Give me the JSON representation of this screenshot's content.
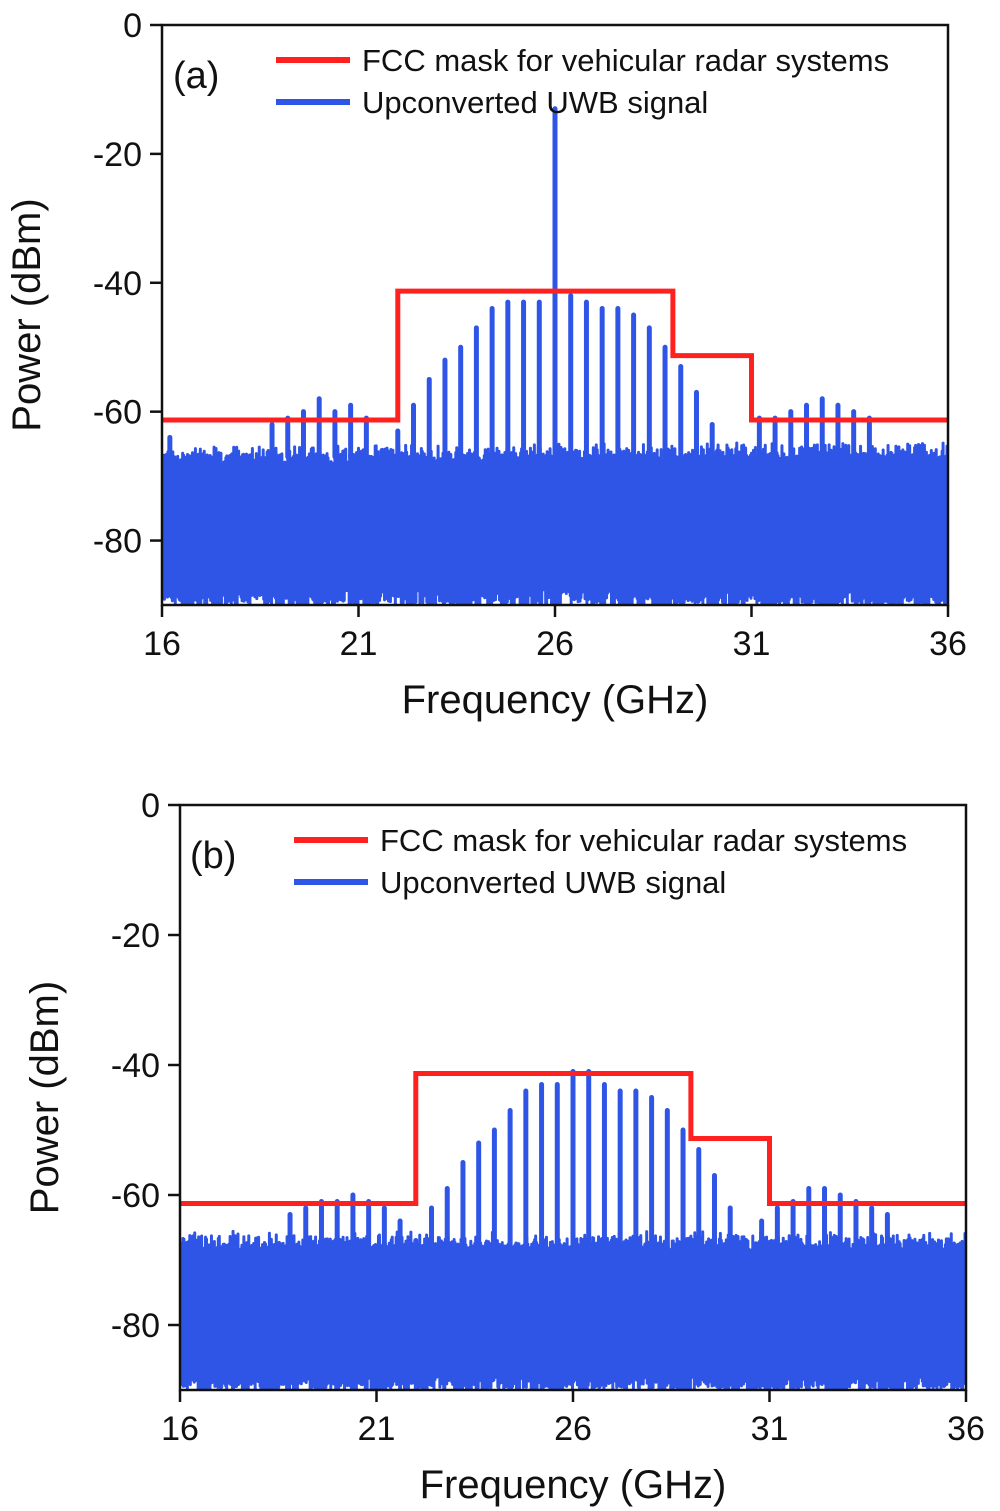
{
  "chart_data": [
    {
      "type": "line",
      "panel_label": "(a)",
      "xlabel": "Frequency (GHz)",
      "ylabel": "Power (dBm)",
      "xlim": [
        16,
        36
      ],
      "ylim": [
        -90,
        0
      ],
      "xticks": [
        16,
        21,
        26,
        31,
        36
      ],
      "yticks": [
        0,
        -20,
        -40,
        -60,
        -80
      ],
      "grid": false,
      "legend": {
        "placement": "top-right",
        "entries": [
          "FCC mask for vehicular radar systems",
          "Upconverted UWB signal"
        ]
      },
      "series": [
        {
          "name": "FCC mask for vehicular radar systems",
          "color": "#ff2020",
          "x": [
            16,
            22,
            22,
            29,
            29,
            31,
            31,
            36
          ],
          "y": [
            -61.3,
            -61.3,
            -41.3,
            -41.3,
            -51.3,
            -51.3,
            -61.3,
            -61.3
          ]
        },
        {
          "name": "Upconverted UWB signal",
          "color": "#2f55e6",
          "noise_band": [
            -89,
            -66
          ],
          "noise_band_edges": [
            -67,
            -86
          ],
          "peak_x": [
            16.2,
            18.8,
            19.2,
            19.6,
            20.0,
            20.4,
            20.8,
            21.2,
            21.6,
            22.0,
            22.4,
            22.8,
            23.2,
            23.6,
            24.0,
            24.4,
            24.8,
            25.2,
            25.6,
            26.0,
            26.4,
            26.8,
            27.2,
            27.6,
            28.0,
            28.4,
            28.8,
            29.2,
            29.6,
            30.0,
            30.4,
            30.8,
            31.2,
            31.6,
            32.0,
            32.4,
            32.8,
            33.2,
            33.6,
            34.0
          ],
          "peak_y": [
            -64,
            -62,
            -61,
            -60,
            -58,
            -60,
            -59,
            -61,
            -66,
            -63,
            -59,
            -55,
            -52,
            -50,
            -47,
            -44,
            -43,
            -43,
            -43,
            -13,
            -42,
            -43,
            -44,
            -44,
            -45,
            -47,
            -50,
            -53,
            -57,
            -62,
            -66,
            -68,
            -61,
            -61,
            -60,
            -59,
            -58,
            -59,
            -60,
            -61
          ]
        }
      ]
    },
    {
      "type": "line",
      "panel_label": "(b)",
      "xlabel": "Frequency (GHz)",
      "ylabel": "Power (dBm)",
      "xlim": [
        16,
        36
      ],
      "ylim": [
        -90,
        0
      ],
      "xticks": [
        16,
        21,
        26,
        31,
        36
      ],
      "yticks": [
        0,
        -20,
        -40,
        -60,
        -80
      ],
      "grid": false,
      "legend": {
        "placement": "top-right",
        "entries": [
          "FCC mask for vehicular radar systems",
          "Upconverted UWB signal"
        ]
      },
      "series": [
        {
          "name": "FCC mask for vehicular radar systems",
          "color": "#ff2020",
          "x": [
            16,
            22,
            22,
            29,
            29,
            31,
            31,
            36
          ],
          "y": [
            -61.3,
            -61.3,
            -41.3,
            -41.3,
            -51.3,
            -51.3,
            -61.3,
            -61.3
          ]
        },
        {
          "name": "Upconverted UWB signal",
          "color": "#2f55e6",
          "noise_band": [
            -89,
            -67
          ],
          "noise_band_edges": [
            -67,
            -85
          ],
          "peak_x": [
            18.8,
            19.2,
            19.6,
            20.0,
            20.4,
            20.8,
            21.2,
            21.6,
            22.0,
            22.4,
            22.8,
            23.2,
            23.6,
            24.0,
            24.4,
            24.8,
            25.2,
            25.6,
            26.0,
            26.4,
            26.8,
            27.2,
            27.6,
            28.0,
            28.4,
            28.8,
            29.2,
            29.6,
            30.0,
            30.4,
            30.8,
            31.2,
            31.6,
            32.0,
            32.4,
            32.8,
            33.2,
            33.6,
            34.0
          ],
          "peak_y": [
            -63,
            -62,
            -61,
            -61,
            -60,
            -61,
            -62,
            -64,
            -67,
            -62,
            -59,
            -55,
            -52,
            -50,
            -47,
            -44,
            -43,
            -43,
            -41,
            -41,
            -43,
            -44,
            -44,
            -45,
            -47,
            -50,
            -53,
            -57,
            -62,
            -67,
            -64,
            -62,
            -61,
            -59,
            -59,
            -60,
            -61,
            -62,
            -63
          ]
        }
      ]
    }
  ]
}
